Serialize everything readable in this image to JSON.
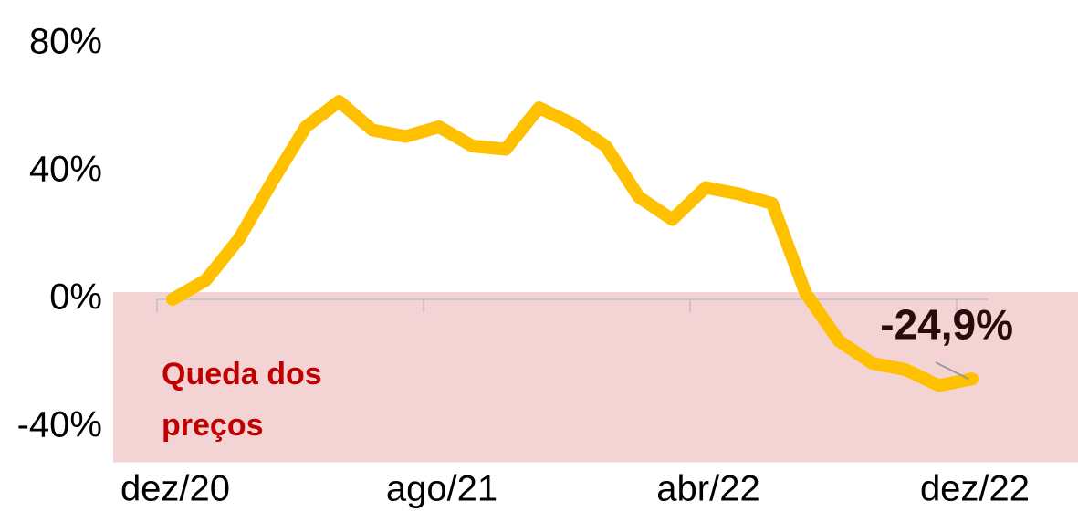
{
  "chart_data": {
    "type": "line",
    "categories": [
      "dez/20",
      null,
      null,
      null,
      null,
      null,
      null,
      null,
      "ago/21",
      null,
      null,
      null,
      null,
      null,
      null,
      null,
      "abr/22",
      null,
      null,
      null,
      null,
      null,
      null,
      null,
      "dez/22"
    ],
    "series": [
      {
        "color": "#ffc000",
        "values": [
          0,
          6,
          19,
          37,
          54,
          62,
          53,
          51,
          54,
          48,
          47,
          60,
          55,
          48,
          32,
          25,
          35,
          33,
          30,
          2,
          -13,
          -20,
          -22,
          -27,
          -24.9
        ],
        "value_labels": [
          null,
          null,
          null,
          null,
          null,
          null,
          null,
          null,
          null,
          null,
          null,
          null,
          null,
          null,
          null,
          null,
          null,
          null,
          null,
          null,
          null,
          null,
          null,
          null,
          "-24,9%"
        ]
      }
    ],
    "ylim": [
      -51,
      85
    ],
    "yticks": [
      {
        "value": 80,
        "label": "80%"
      },
      {
        "value": 40,
        "label": "40%"
      },
      {
        "value": 0,
        "label": "0%"
      },
      {
        "value": -40,
        "label": "-40%"
      }
    ],
    "annotation": [
      "Queda dos",
      "preços"
    ]
  }
}
